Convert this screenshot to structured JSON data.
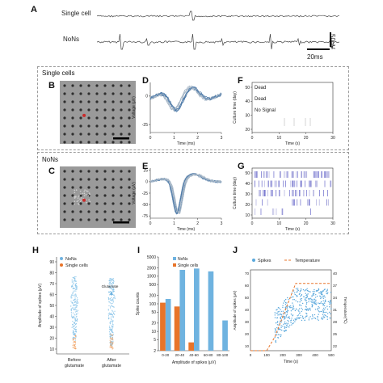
{
  "panels": {
    "A": "A",
    "B": "B",
    "C": "C",
    "D": "D",
    "E": "E",
    "F": "F",
    "G": "G",
    "H": "H",
    "I": "I",
    "J": "J"
  },
  "panelA": {
    "trace_labels": [
      "Single cell",
      "NoNs"
    ],
    "scale_v": "50uV",
    "scale_t": "20ms"
  },
  "sections": {
    "single_title": "Single cells",
    "nons_title": "NoNs"
  },
  "panelD": {
    "ylabel": "Voltage (μV)",
    "xlabel": "Time (ms)",
    "yticks": [
      "0",
      "-25"
    ],
    "xticks": [
      "0",
      "1",
      "2",
      "3"
    ]
  },
  "panelE": {
    "ylabel": "Voltage (μV)",
    "xlabel": "Time (ms)",
    "yticks": [
      "25",
      "0",
      "-25",
      "-50",
      "-75"
    ],
    "xticks": [
      "0",
      "1",
      "2",
      "3"
    ]
  },
  "panelF": {
    "ylabel": "Culture time (day)",
    "xlabel": "Time (s)",
    "yticks": [
      "50",
      "40",
      "30",
      "20"
    ],
    "xticks": [
      "0",
      "10",
      "20",
      "30"
    ],
    "status": [
      "Dead",
      "Dead",
      "No Signal"
    ]
  },
  "panelG": {
    "ylabel": "Culture time (day)",
    "xlabel": "Time (s)",
    "yticks": [
      "50",
      "40",
      "30",
      "20",
      "10"
    ],
    "xticks": [
      "0",
      "10",
      "20",
      "30"
    ]
  },
  "panelH": {
    "legend": [
      "NoNs",
      "Single cells"
    ],
    "ylabel": "Amplitude of spikes (μV)",
    "yticks": [
      "90",
      "80",
      "70",
      "60",
      "50",
      "40",
      "30",
      "20",
      "10"
    ],
    "xticks": [
      "Before glutamate",
      "After glutamate"
    ],
    "annotation": "Glutamate"
  },
  "panelI": {
    "legend": [
      "NoNs",
      "Single cells"
    ],
    "ylabel": "Spike counts",
    "xlabel": "Amplitude of spikes (μV)",
    "yticks": [
      "5000",
      "2000",
      "1000",
      "500",
      "200",
      "100",
      "50",
      "20",
      "10",
      "5",
      "2"
    ]
  },
  "panelJ": {
    "legend": [
      "Spikes",
      "Temperature"
    ],
    "ylabel_left": "Amplitude of spikes (μV)",
    "ylabel_right": "Temperature(℃)",
    "xlabel": "Time (s)",
    "yticks_left": [
      "70",
      "60",
      "50",
      "40",
      "30",
      "20",
      "10"
    ],
    "yticks_right": [
      "40",
      "37",
      "34",
      "31",
      "28",
      "25",
      "22"
    ],
    "xticks": [
      "0",
      "100",
      "200",
      "300",
      "400",
      "500"
    ]
  },
  "chart_data": [
    {
      "id": "I",
      "type": "bar",
      "categories": [
        "0-20",
        "20-40",
        "40-60",
        "60-80",
        "80-100"
      ],
      "series": [
        {
          "name": "NoNs",
          "values": [
            150,
            1700,
            1900,
            1500,
            25
          ]
        },
        {
          "name": "Single cells",
          "values": [
            110,
            80,
            4,
            null,
            null
          ]
        }
      ],
      "ylabel": "Spike counts",
      "xlabel": "Amplitude of spikes (μV)",
      "yscale": "log",
      "ylim": [
        2,
        5000
      ],
      "colors": {
        "NoNs": "#6fb3e0",
        "Single cells": "#e8742a"
      }
    },
    {
      "id": "J",
      "type": "line",
      "series": [
        {
          "name": "Temperature",
          "x": [
            0,
            100,
            150,
            280,
            520
          ],
          "y": [
            22,
            22,
            25,
            37,
            37
          ]
        }
      ],
      "xlim": [
        0,
        500
      ],
      "ylim_right": [
        22,
        40
      ],
      "ylim_left": [
        0,
        70
      ],
      "colors": {
        "Spikes": "#5aa8dc",
        "Temperature": "#e8742a"
      }
    }
  ],
  "colors": {
    "nons": "#6fb3e0",
    "single": "#e8742a",
    "trace": "#4a78a8"
  }
}
